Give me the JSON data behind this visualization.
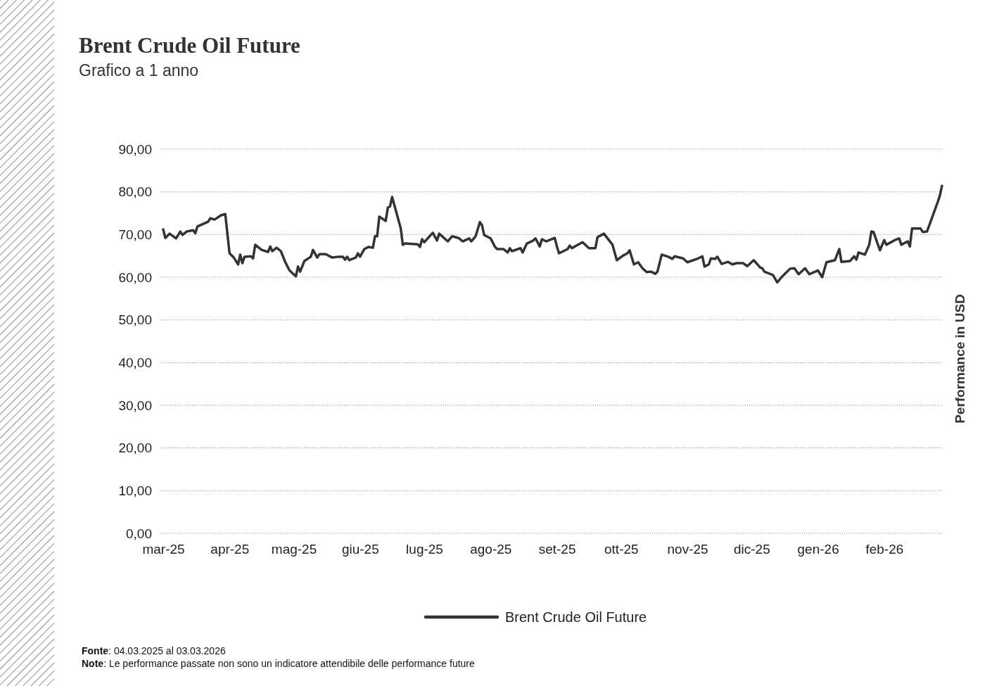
{
  "chart_data": {
    "type": "line",
    "title": "Brent Crude Oil Future",
    "subtitle": "Grafico a 1 anno",
    "ylabel": "Performance in USD",
    "annotations": [
      "Fonte: 04.03.2025 al 03.03.2026",
      "Note: Le performance passate non sono un indicatore attendibile delle performance future"
    ],
    "xlim": [
      "2025-03-04",
      "2026-03-03"
    ],
    "xticks": [
      {
        "value": "2025-03-04",
        "label": "mar-25"
      },
      {
        "value": "2025-04-04",
        "label": "apr-25"
      },
      {
        "value": "2025-05-04",
        "label": "mag-25"
      },
      {
        "value": "2025-06-04",
        "label": "giu-25"
      },
      {
        "value": "2025-07-04",
        "label": "lug-25"
      },
      {
        "value": "2025-08-04",
        "label": "ago-25"
      },
      {
        "value": "2025-09-04",
        "label": "set-25"
      },
      {
        "value": "2025-10-04",
        "label": "ott-25"
      },
      {
        "value": "2025-11-04",
        "label": "nov-25"
      },
      {
        "value": "2025-12-04",
        "label": "dic-25"
      },
      {
        "value": "2026-01-04",
        "label": "gen-26"
      },
      {
        "value": "2026-02-04",
        "label": "feb-26"
      }
    ],
    "ylim": [
      0,
      90
    ],
    "yticks": [
      {
        "value": 0,
        "label": "0,00"
      },
      {
        "value": 10,
        "label": "10,00"
      },
      {
        "value": 20,
        "label": "20,00"
      },
      {
        "value": 30,
        "label": "30,00"
      },
      {
        "value": 40,
        "label": "40,00"
      },
      {
        "value": 50,
        "label": "50,00"
      },
      {
        "value": 60,
        "label": "60,00"
      },
      {
        "value": 70,
        "label": "70,00"
      },
      {
        "value": 80,
        "label": "80,00"
      },
      {
        "value": 90,
        "label": "90,00"
      }
    ],
    "grid": "y",
    "legend": "bottom",
    "line_style": "solid",
    "marker": "none",
    "series": [
      {
        "name": "Brent Crude Oil Future",
        "color": "#333333",
        "x": [
          "2025-03-04",
          "2025-03-05",
          "2025-03-07",
          "2025-03-10",
          "2025-03-12",
          "2025-03-13",
          "2025-03-15",
          "2025-03-18",
          "2025-03-19",
          "2025-03-20",
          "2025-03-25",
          "2025-03-26",
          "2025-03-28",
          "2025-03-31",
          "2025-04-02",
          "2025-04-04",
          "2025-04-06",
          "2025-04-08",
          "2025-04-09",
          "2025-04-10",
          "2025-04-11",
          "2025-04-14",
          "2025-04-15",
          "2025-04-16",
          "2025-04-19",
          "2025-04-22",
          "2025-04-23",
          "2025-04-24",
          "2025-04-26",
          "2025-04-28",
          "2025-04-30",
          "2025-05-02",
          "2025-05-05",
          "2025-05-06",
          "2025-05-07",
          "2025-05-09",
          "2025-05-12",
          "2025-05-13",
          "2025-05-15",
          "2025-05-16",
          "2025-05-19",
          "2025-05-22",
          "2025-05-25",
          "2025-05-27",
          "2025-05-28",
          "2025-05-29",
          "2025-05-30",
          "2025-06-02",
          "2025-06-03",
          "2025-06-04",
          "2025-06-06",
          "2025-06-08",
          "2025-06-10",
          "2025-06-11",
          "2025-06-12",
          "2025-06-13",
          "2025-06-16",
          "2025-06-17",
          "2025-06-18",
          "2025-06-19",
          "2025-06-23",
          "2025-06-24",
          "2025-06-25",
          "2025-07-01",
          "2025-07-02",
          "2025-07-03",
          "2025-07-04",
          "2025-07-08",
          "2025-07-10",
          "2025-07-11",
          "2025-07-15",
          "2025-07-17",
          "2025-07-20",
          "2025-07-22",
          "2025-07-25",
          "2025-07-26",
          "2025-07-28",
          "2025-07-29",
          "2025-07-30",
          "2025-07-31",
          "2025-08-01",
          "2025-08-04",
          "2025-08-06",
          "2025-08-07",
          "2025-08-10",
          "2025-08-12",
          "2025-08-13",
          "2025-08-14",
          "2025-08-18",
          "2025-08-19",
          "2025-08-21",
          "2025-08-24",
          "2025-08-25",
          "2025-08-27",
          "2025-08-28",
          "2025-08-30",
          "2025-09-03",
          "2025-09-04",
          "2025-09-05",
          "2025-09-07",
          "2025-09-09",
          "2025-09-10",
          "2025-09-11",
          "2025-09-12",
          "2025-09-16",
          "2025-09-19",
          "2025-09-22",
          "2025-09-23",
          "2025-09-26",
          "2025-09-30",
          "2025-10-02",
          "2025-10-05",
          "2025-10-07",
          "2025-10-08",
          "2025-10-10",
          "2025-10-12",
          "2025-10-14",
          "2025-10-16",
          "2025-10-18",
          "2025-10-20",
          "2025-10-21",
          "2025-10-23",
          "2025-10-26",
          "2025-10-28",
          "2025-10-29",
          "2025-11-02",
          "2025-11-04",
          "2025-11-09",
          "2025-11-11",
          "2025-11-12",
          "2025-11-14",
          "2025-11-15",
          "2025-11-17",
          "2025-11-18",
          "2025-11-20",
          "2025-11-23",
          "2025-11-25",
          "2025-11-27",
          "2025-11-30",
          "2025-12-02",
          "2025-12-05",
          "2025-12-08",
          "2025-12-09",
          "2025-12-10",
          "2025-12-14",
          "2025-12-16",
          "2025-12-18",
          "2025-12-22",
          "2025-12-24",
          "2025-12-26",
          "2025-12-29",
          "2025-12-31",
          "2026-01-04",
          "2026-01-06",
          "2026-01-08",
          "2026-01-12",
          "2026-01-14",
          "2026-01-15",
          "2026-01-19",
          "2026-01-21",
          "2026-01-22",
          "2026-01-23",
          "2026-01-26",
          "2026-01-28",
          "2026-01-29",
          "2026-01-30",
          "2026-02-02",
          "2026-02-04",
          "2026-02-05",
          "2026-02-09",
          "2026-02-11",
          "2026-02-12",
          "2026-02-15",
          "2026-02-16",
          "2026-02-17",
          "2026-02-21",
          "2026-02-22",
          "2026-02-24",
          "2026-03-01",
          "2026-03-02",
          "2026-03-03"
        ],
        "values": [
          71.2,
          69.2,
          70.2,
          69.1,
          70.7,
          69.9,
          70.7,
          71.0,
          70.3,
          71.9,
          73.0,
          73.8,
          73.5,
          74.5,
          74.8,
          65.6,
          64.6,
          63.0,
          65.3,
          63.3,
          64.8,
          64.9,
          64.4,
          67.6,
          66.4,
          65.9,
          67.2,
          66.1,
          66.9,
          66.1,
          63.6,
          61.6,
          60.2,
          62.5,
          61.3,
          63.8,
          64.8,
          66.4,
          64.6,
          65.4,
          65.4,
          64.6,
          64.8,
          64.8,
          64.1,
          64.8,
          64.0,
          64.6,
          65.6,
          64.8,
          66.6,
          67.1,
          66.9,
          69.6,
          69.6,
          74.2,
          73.2,
          76.3,
          76.6,
          78.8,
          71.5,
          67.6,
          67.9,
          67.7,
          67.1,
          68.9,
          68.2,
          70.4,
          68.6,
          70.2,
          68.4,
          69.6,
          69.2,
          68.4,
          69.1,
          68.4,
          69.6,
          71.2,
          72.9,
          72.2,
          69.9,
          69.1,
          67.2,
          66.6,
          66.6,
          65.8,
          66.8,
          66.1,
          66.8,
          65.8,
          67.9,
          68.6,
          69.1,
          67.2,
          68.9,
          68.4,
          69.2,
          67.2,
          65.6,
          66.1,
          66.6,
          67.4,
          66.8,
          67.1,
          68.2,
          66.8,
          66.8,
          69.4,
          70.2,
          67.6,
          64.0,
          65.1,
          65.6,
          66.3,
          63.0,
          63.5,
          62.1,
          61.2,
          61.3,
          60.8,
          61.3,
          65.3,
          64.8,
          64.3,
          64.9,
          64.4,
          63.5,
          64.4,
          64.9,
          62.5,
          63.0,
          64.4,
          64.3,
          64.8,
          63.1,
          63.6,
          63.0,
          63.3,
          63.3,
          62.6,
          64.0,
          62.3,
          62.1,
          61.3,
          60.5,
          58.8,
          60.0,
          62.0,
          62.1,
          60.7,
          62.1,
          60.7,
          61.6,
          60.0,
          63.5,
          64.0,
          66.6,
          63.6,
          63.8,
          64.9,
          64.1,
          65.8,
          65.3,
          67.6,
          70.7,
          70.6,
          66.3,
          68.7,
          67.6,
          68.7,
          69.1,
          67.6,
          68.4,
          67.2,
          71.4,
          71.4,
          70.6,
          70.7,
          77.6,
          79.1,
          81.4
        ]
      }
    ]
  }
}
